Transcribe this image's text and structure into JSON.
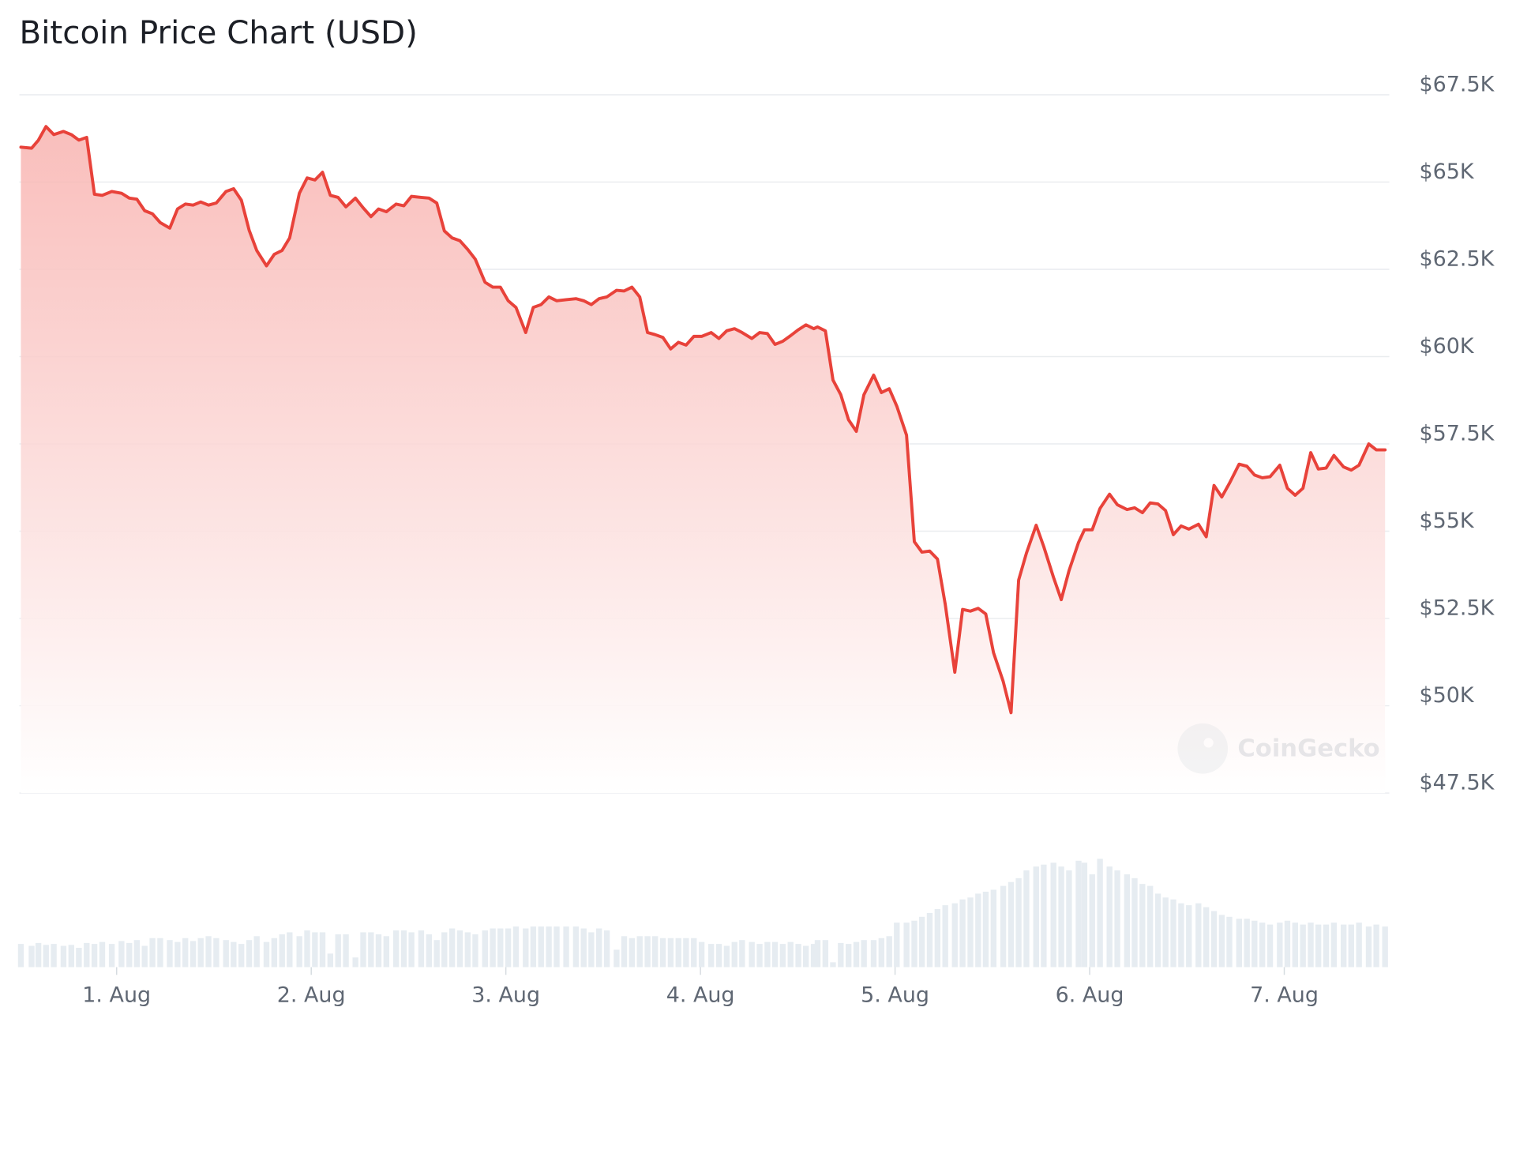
{
  "chart_data": {
    "type": "line",
    "title": "Bitcoin Price Chart (USD)",
    "watermark": "CoinGecko",
    "color": "#e8423a",
    "volume_color": "#e6ecf1",
    "grid": true,
    "xlim": [
      0.51,
      7.52
    ],
    "ylim": [
      47500,
      67500
    ],
    "volume_ylim": [
      0,
      120
    ],
    "yticks": [
      {
        "value": 47500,
        "label": "$47.5K"
      },
      {
        "value": 50000,
        "label": "$50K"
      },
      {
        "value": 52500,
        "label": "$52.5K"
      },
      {
        "value": 55000,
        "label": "$55K"
      },
      {
        "value": 57500,
        "label": "$57.5K"
      },
      {
        "value": 60000,
        "label": "$60K"
      },
      {
        "value": 62500,
        "label": "$62.5K"
      },
      {
        "value": 65000,
        "label": "$65K"
      },
      {
        "value": 67500,
        "label": "$67.5K"
      }
    ],
    "xticks": [
      {
        "value": 1,
        "label": "1. Aug"
      },
      {
        "value": 2,
        "label": "2. Aug"
      },
      {
        "value": 3,
        "label": "3. Aug"
      },
      {
        "value": 4,
        "label": "4. Aug"
      },
      {
        "value": 5,
        "label": "5. Aug"
      },
      {
        "value": 6,
        "label": "6. Aug"
      },
      {
        "value": 7,
        "label": "7. Aug"
      }
    ],
    "x": [
      0.508,
      0.563,
      0.598,
      0.637,
      0.677,
      0.727,
      0.767,
      0.806,
      0.846,
      0.886,
      0.926,
      0.975,
      1.025,
      1.065,
      1.104,
      1.144,
      1.184,
      1.224,
      1.273,
      1.313,
      1.353,
      1.393,
      1.432,
      1.472,
      1.512,
      1.562,
      1.601,
      1.641,
      1.681,
      1.72,
      1.77,
      1.81,
      1.85,
      1.889,
      1.939,
      1.979,
      2.019,
      2.058,
      2.098,
      2.138,
      2.178,
      2.227,
      2.267,
      2.307,
      2.346,
      2.386,
      2.436,
      2.476,
      2.515,
      2.565,
      2.605,
      2.645,
      2.684,
      2.724,
      2.764,
      2.804,
      2.843,
      2.893,
      2.933,
      2.972,
      3.012,
      3.052,
      3.102,
      3.141,
      3.181,
      3.221,
      3.261,
      3.31,
      3.36,
      3.4,
      3.439,
      3.479,
      3.519,
      3.569,
      3.608,
      3.648,
      3.688,
      3.728,
      3.767,
      3.807,
      3.847,
      3.887,
      3.926,
      3.966,
      4.006,
      4.055,
      4.095,
      4.135,
      4.175,
      4.214,
      4.264,
      4.304,
      4.344,
      4.383,
      4.423,
      4.463,
      4.503,
      4.542,
      4.582,
      4.602,
      4.642,
      4.681,
      4.721,
      4.761,
      4.801,
      4.84,
      4.89,
      4.93,
      4.97,
      5.009,
      5.059,
      5.099,
      5.138,
      5.178,
      5.218,
      5.258,
      5.307,
      5.347,
      5.387,
      5.427,
      5.466,
      5.506,
      5.556,
      5.596,
      5.635,
      5.675,
      5.725,
      5.764,
      5.814,
      5.854,
      5.894,
      5.943,
      5.973,
      6.013,
      6.053,
      6.102,
      6.142,
      6.192,
      6.231,
      6.271,
      6.311,
      6.351,
      6.39,
      6.43,
      6.47,
      6.51,
      6.559,
      6.599,
      6.639,
      6.679,
      6.718,
      6.768,
      6.808,
      6.847,
      6.887,
      6.927,
      6.977,
      7.016,
      7.056,
      7.096,
      7.136,
      7.175,
      7.215,
      7.255,
      7.305,
      7.344,
      7.384,
      7.434,
      7.473,
      7.518
    ],
    "values": [
      66000,
      65970,
      66200,
      66590,
      66360,
      66450,
      66360,
      66200,
      66280,
      64650,
      64620,
      64730,
      64680,
      64540,
      64510,
      64180,
      64090,
      63840,
      63680,
      64230,
      64370,
      64340,
      64430,
      64340,
      64400,
      64730,
      64810,
      64480,
      63620,
      63040,
      62600,
      62930,
      63040,
      63400,
      64680,
      65120,
      65060,
      65280,
      64620,
      64560,
      64290,
      64540,
      64260,
      64010,
      64230,
      64150,
      64370,
      64320,
      64590,
      64560,
      64540,
      64400,
      63600,
      63400,
      63320,
      63070,
      62790,
      62130,
      61990,
      61990,
      61600,
      61410,
      60690,
      61410,
      61490,
      61710,
      61600,
      61630,
      61660,
      61600,
      61490,
      61660,
      61710,
      61900,
      61880,
      61990,
      61710,
      60690,
      60630,
      60550,
      60220,
      60410,
      60330,
      60580,
      60580,
      60690,
      60520,
      60740,
      60800,
      60690,
      60520,
      60690,
      60660,
      60350,
      60440,
      60600,
      60770,
      60910,
      60800,
      60850,
      60740,
      59330,
      58910,
      58190,
      57860,
      58910,
      59470,
      58970,
      59080,
      58580,
      57750,
      54700,
      54400,
      54430,
      54200,
      52900,
      50960,
      52760,
      52710,
      52790,
      52630,
      51520,
      50690,
      49800,
      53600,
      54370,
      55170,
      54560,
      53680,
      53040,
      53870,
      54680,
      55040,
      55040,
      55650,
      56060,
      55760,
      55620,
      55670,
      55530,
      55810,
      55780,
      55590,
      54900,
      55150,
      55060,
      55200,
      54840,
      56310,
      55980,
      56370,
      56920,
      56860,
      56610,
      56530,
      56560,
      56890,
      56230,
      56030,
      56230,
      57250,
      56780,
      56810,
      57170,
      56840,
      56750,
      56890,
      57500,
      57330,
      57330
    ],
    "volume": [
      24,
      22,
      25,
      23,
      24,
      22,
      23,
      20,
      25,
      24,
      26,
      24,
      27,
      25,
      28,
      22,
      30,
      30,
      28,
      26,
      30,
      27,
      30,
      32,
      30,
      28,
      26,
      24,
      28,
      32,
      26,
      30,
      34,
      36,
      32,
      38,
      36,
      36,
      14,
      34,
      34,
      10,
      36,
      36,
      34,
      32,
      38,
      38,
      36,
      38,
      34,
      28,
      36,
      40,
      38,
      36,
      34,
      38,
      40,
      40,
      40,
      42,
      40,
      42,
      42,
      42,
      42,
      42,
      42,
      40,
      36,
      40,
      38,
      18,
      32,
      30,
      32,
      32,
      32,
      30,
      30,
      30,
      30,
      30,
      26,
      24,
      24,
      22,
      26,
      28,
      26,
      24,
      26,
      26,
      24,
      26,
      24,
      22,
      24,
      28,
      28,
      5,
      25,
      24,
      26,
      28,
      28,
      30,
      32,
      46,
      46,
      48,
      52,
      56,
      60,
      64,
      66,
      70,
      72,
      76,
      78,
      80,
      84,
      88,
      92,
      100,
      104,
      106,
      108,
      104,
      100,
      110,
      108,
      96,
      112,
      104,
      100,
      96,
      92,
      86,
      84,
      76,
      72,
      70,
      66,
      64,
      66,
      62,
      58,
      54,
      52,
      50,
      50,
      48,
      46,
      44,
      46,
      48,
      46,
      44,
      46,
      44,
      44,
      46,
      44,
      44,
      46,
      42,
      44,
      42
    ]
  }
}
